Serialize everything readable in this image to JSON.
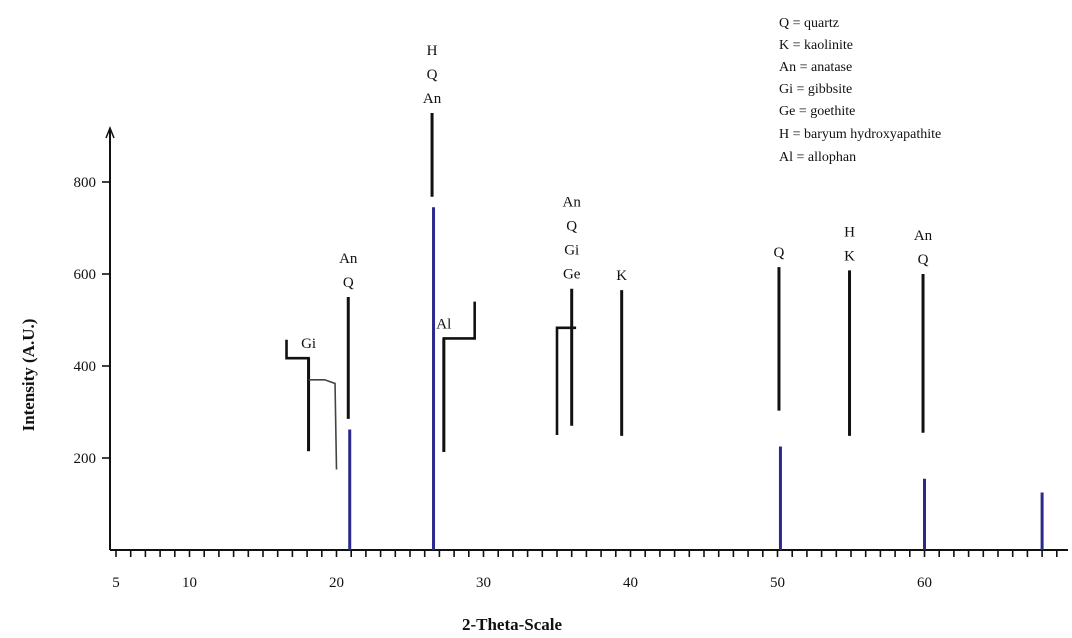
{
  "chart_data": {
    "type": "line",
    "title": "",
    "xlabel": "2-Theta-Scale",
    "ylabel": "Intensity (A.U.)",
    "xlim": [
      5,
      69
    ],
    "ylim": [
      0,
      910
    ],
    "x_ticks": [
      "5",
      "10",
      "20",
      "30",
      "40",
      "50",
      "60"
    ],
    "y_ticks": [
      "200",
      "400",
      "600",
      "800"
    ],
    "legend": [
      "Q = quartz",
      "K = kaolinite",
      "An = anatase",
      "Gi = gibbsite",
      "Ge = goethite",
      "H = baryum hydroxyapathite",
      "Al = allophan"
    ],
    "diffraction_peaks": [
      {
        "x": 20.9,
        "y": 262
      },
      {
        "x": 26.6,
        "y": 745
      },
      {
        "x": 50.2,
        "y": 225
      },
      {
        "x": 60.0,
        "y": 155
      },
      {
        "x": 68.0,
        "y": 125
      }
    ],
    "peak_annotations": [
      {
        "x": 18.1,
        "labels": [
          "Gi"
        ],
        "marker_range": [
          215,
          417
        ]
      },
      {
        "x": 20.8,
        "labels": [
          "An",
          "Q"
        ],
        "marker_range": [
          285,
          550
        ]
      },
      {
        "x": 26.5,
        "labels": [
          "H",
          "Q",
          "An"
        ],
        "marker_range": [
          768,
          950
        ]
      },
      {
        "x": 27.3,
        "labels": [
          "Al"
        ],
        "marker_range": [
          213,
          460
        ]
      },
      {
        "x": 36.0,
        "labels": [
          "An",
          "Q",
          "Gi",
          "Ge"
        ],
        "marker_range": [
          270,
          568
        ]
      },
      {
        "x": 39.4,
        "labels": [
          "K"
        ],
        "marker_range": [
          248,
          565
        ]
      },
      {
        "x": 50.1,
        "labels": [
          "Q"
        ],
        "marker_range": [
          303,
          615
        ]
      },
      {
        "x": 54.9,
        "labels": [
          "H",
          "K"
        ],
        "marker_range": [
          248,
          608
        ]
      },
      {
        "x": 59.9,
        "labels": [
          "An",
          "Q"
        ],
        "marker_range": [
          255,
          600
        ]
      }
    ]
  }
}
